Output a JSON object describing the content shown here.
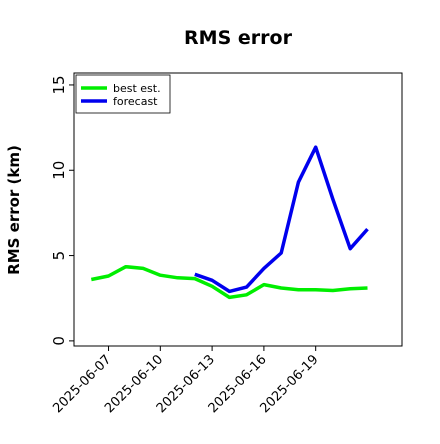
{
  "chart_data": {
    "type": "line",
    "title": "RMS error",
    "xlabel": "",
    "ylabel": "RMS error (km)",
    "xlim": [
      "2025-06-05",
      "2025-06-24"
    ],
    "ylim": [
      -0.3,
      15.7
    ],
    "yticks": [
      0,
      5,
      10,
      15
    ],
    "xticks": [
      "2025-06-07",
      "2025-06-10",
      "2025-06-13",
      "2025-06-16",
      "2025-06-19"
    ],
    "grid": false,
    "legend": "top-left",
    "series": [
      {
        "name": "best est.",
        "color": "#00ee00",
        "x": [
          "2025-06-06",
          "2025-06-07",
          "2025-06-08",
          "2025-06-09",
          "2025-06-10",
          "2025-06-11",
          "2025-06-12",
          "2025-06-13",
          "2025-06-14",
          "2025-06-15",
          "2025-06-16",
          "2025-06-17",
          "2025-06-18",
          "2025-06-19",
          "2025-06-20",
          "2025-06-21",
          "2025-06-22"
        ],
        "values": [
          3.6,
          3.8,
          4.35,
          4.25,
          3.85,
          3.7,
          3.65,
          3.2,
          2.55,
          2.7,
          3.3,
          3.1,
          3.0,
          3.0,
          2.95,
          3.05,
          3.1
        ]
      },
      {
        "name": "forecast",
        "color": "#0000ee",
        "x": [
          "2025-06-12",
          "2025-06-13",
          "2025-06-14",
          "2025-06-15",
          "2025-06-16",
          "2025-06-17",
          "2025-06-18",
          "2025-06-19",
          "2025-06-20",
          "2025-06-21",
          "2025-06-22"
        ],
        "values": [
          3.9,
          3.55,
          2.9,
          3.15,
          4.25,
          5.15,
          9.3,
          11.35,
          8.3,
          5.4,
          6.55
        ]
      }
    ]
  }
}
